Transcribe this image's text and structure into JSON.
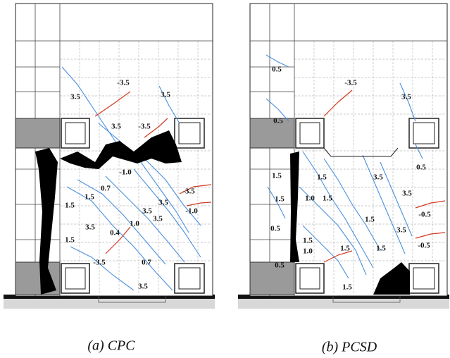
{
  "panels": [
    {
      "caption": "(a) CPC",
      "labels": [
        "-3.5",
        "3.5",
        "3.5",
        "3.5",
        "-3.5",
        "-1.0",
        "0.7",
        "1.5",
        "-3.5",
        "1.5",
        "3.5",
        "3.5",
        "-1.0",
        "3.5",
        "1.0",
        "3.5",
        "0.4",
        "1.5",
        "-3.5",
        "0.7",
        "3.5"
      ]
    },
    {
      "caption": "(b) PCSD",
      "labels": [
        "0.5",
        "-3.5",
        "3.5",
        "0.5",
        "0.5",
        "1.5",
        "1.5",
        "3.5",
        "1.5",
        "1.0",
        "1.5",
        "3.5",
        "-0.5",
        "0.5",
        "1.5",
        "3.5",
        "1.5",
        "-0.5",
        "1.0",
        "1.5",
        "1.5",
        "0.5",
        "1.5"
      ]
    }
  ]
}
